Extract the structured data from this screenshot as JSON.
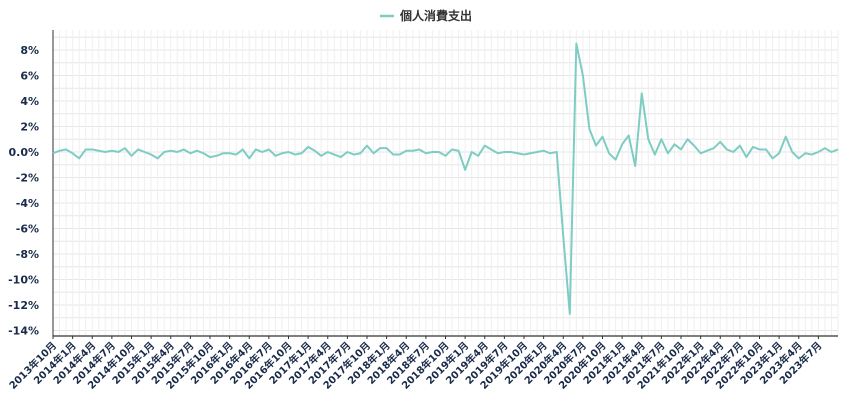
{
  "chart_data": {
    "type": "line",
    "legend": {
      "position": "top-center"
    },
    "grid": true,
    "ylim": [
      -14.5,
      9.5
    ],
    "yticks": [
      8,
      6,
      4,
      2,
      0,
      -2,
      -4,
      -6,
      -8,
      -10,
      -12,
      -14
    ],
    "ytick_labels": [
      "8%",
      "6%",
      "4%",
      "2%",
      "0.0%",
      "-2%",
      "-4%",
      "-6%",
      "-8%",
      "-10%",
      "-12%",
      "-14%"
    ],
    "x_start": "2013-10",
    "xtick_labels": [
      "2013年10月",
      "2014年1月",
      "2014年4月",
      "2014年7月",
      "2014年10月",
      "2015年1月",
      "2015年4月",
      "2015年7月",
      "2015年10月",
      "2016年1月",
      "2016年4月",
      "2016年7月",
      "2016年10月",
      "2017年1月",
      "2017年4月",
      "2017年7月",
      "2017年10月",
      "2018年1月",
      "2018年4月",
      "2018年7月",
      "2018年10月",
      "2019年1月",
      "2019年4月",
      "2019年7月",
      "2019年10月",
      "2020年1月",
      "2020年4月",
      "2020年7月",
      "2020年10月",
      "2021年1月",
      "2021年4月",
      "2021年7月",
      "2021年10月",
      "2022年1月",
      "2022年4月",
      "2022年7月",
      "2022年10月",
      "2023年1月",
      "2023年4月",
      "2023年7月"
    ],
    "series": [
      {
        "name": "個人消費支出",
        "color": "#7ecdc4",
        "values": [
          -0.1,
          0.1,
          0.2,
          -0.1,
          -0.5,
          0.2,
          0.2,
          0.1,
          0.0,
          0.1,
          0.0,
          0.3,
          -0.3,
          0.2,
          0.0,
          -0.2,
          -0.5,
          0.0,
          0.1,
          0.0,
          0.2,
          -0.1,
          0.1,
          -0.1,
          -0.4,
          -0.3,
          -0.1,
          -0.1,
          -0.2,
          0.2,
          -0.5,
          0.2,
          0.0,
          0.2,
          -0.3,
          -0.1,
          0.0,
          -0.2,
          -0.1,
          0.4,
          0.1,
          -0.3,
          0.0,
          -0.2,
          -0.4,
          0.0,
          -0.2,
          -0.1,
          0.5,
          -0.1,
          0.3,
          0.3,
          -0.2,
          -0.2,
          0.1,
          0.1,
          0.2,
          -0.1,
          0.0,
          0.0,
          -0.3,
          0.2,
          0.1,
          -1.4,
          0.0,
          -0.3,
          0.5,
          0.2,
          -0.1,
          0.0,
          0.0,
          -0.1,
          -0.2,
          -0.1,
          0.0,
          0.1,
          -0.1,
          0.0,
          -6.6,
          -12.7,
          8.5,
          6.0,
          1.8,
          0.5,
          1.2,
          -0.1,
          -0.6,
          0.6,
          1.3,
          -1.1,
          4.6,
          1.0,
          -0.2,
          1.0,
          -0.1,
          0.6,
          0.2,
          1.0,
          0.5,
          -0.1,
          0.1,
          0.3,
          0.8,
          0.2,
          0.0,
          0.5,
          -0.4,
          0.4,
          0.2,
          0.2,
          -0.5,
          -0.1,
          1.2,
          0.0,
          -0.5,
          -0.1,
          -0.2,
          0.0,
          0.3,
          0.0,
          0.2
        ]
      }
    ]
  }
}
